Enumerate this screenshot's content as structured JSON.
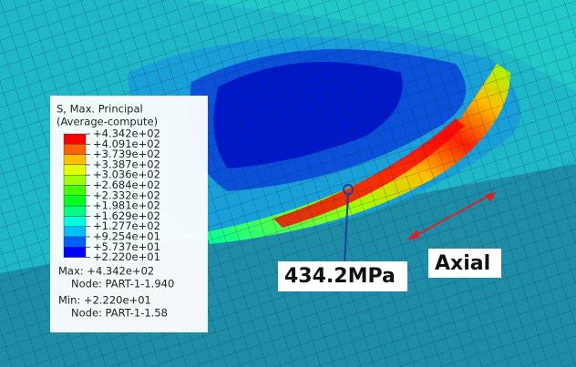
{
  "legend": {
    "title": "S, Max. Principal",
    "subtitle": "(Average-compute)",
    "labels": [
      "+4.342e+02",
      "+4.091e+02",
      "+3.739e+02",
      "+3.387e+02",
      "+3.036e+02",
      "+2.684e+02",
      "+2.332e+02",
      "+1.981e+02",
      "+1.629e+02",
      "+1.277e+02",
      "+9.254e+01",
      "+5.737e+01",
      "+2.220e+01"
    ],
    "colors": [
      "#ff0000",
      "#ff6000",
      "#ffbf00",
      "#e1ff00",
      "#a0ff00",
      "#40ff00",
      "#00ff20",
      "#00ff80",
      "#00ffe0",
      "#00c0ff",
      "#0060ff",
      "#0000ff"
    ],
    "max": "Max: +4.342e+02",
    "max_node": "Node: PART-1-1.940",
    "min": "Min: +2.220e+01",
    "min_node": "Node: PART-1-1.58"
  },
  "annotations": {
    "peak": "434.2MPa",
    "direction": "Axial"
  }
}
